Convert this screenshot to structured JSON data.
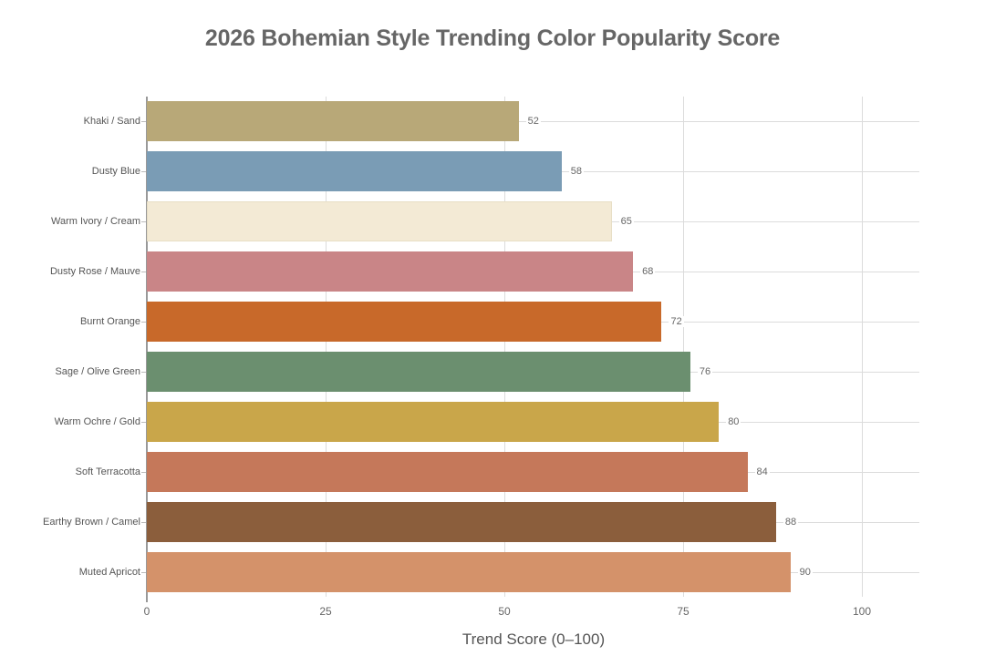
{
  "chart_data": {
    "type": "bar",
    "orientation": "horizontal",
    "title": "2026 Bohemian Style Trending Color Popularity Score",
    "xlabel": "Trend Score (0–100)",
    "ylabel": "",
    "xlim": [
      0,
      108
    ],
    "xticks": [
      0,
      25,
      50,
      75,
      100
    ],
    "grid": true,
    "legend": null,
    "categories": [
      "Khaki / Sand",
      "Dusty Blue",
      "Warm Ivory / Cream",
      "Dusty Rose / Mauve",
      "Burnt Orange",
      "Sage / Olive Green",
      "Warm Ochre / Gold",
      "Soft Terracotta",
      "Earthy Brown / Camel",
      "Muted Apricot"
    ],
    "values": [
      52,
      58,
      65,
      68,
      72,
      76,
      80,
      84,
      88,
      90
    ],
    "colors": [
      "#b8a878",
      "#7a9cb5",
      "#f3ead5",
      "#c98587",
      "#c8692a",
      "#6b8f6f",
      "#c9a64a",
      "#c5785a",
      "#8b5e3c",
      "#d4926a"
    ]
  },
  "labels": {
    "title": "2026 Bohemian Style Trending Color Popularity Score",
    "xlabel": "Trend Score (0–100)",
    "xticks": [
      "0",
      "25",
      "50",
      "75",
      "100"
    ],
    "bars": [
      {
        "name": "Khaki / Sand",
        "value": "52"
      },
      {
        "name": "Dusty Blue",
        "value": "58"
      },
      {
        "name": "Warm Ivory / Cream",
        "value": "65"
      },
      {
        "name": "Dusty Rose / Mauve",
        "value": "68"
      },
      {
        "name": "Burnt Orange",
        "value": "72"
      },
      {
        "name": "Sage / Olive Green",
        "value": "76"
      },
      {
        "name": "Warm Ochre / Gold",
        "value": "80"
      },
      {
        "name": "Soft Terracotta",
        "value": "84"
      },
      {
        "name": "Earthy Brown / Camel",
        "value": "88"
      },
      {
        "name": "Muted Apricot",
        "value": "90"
      }
    ]
  }
}
